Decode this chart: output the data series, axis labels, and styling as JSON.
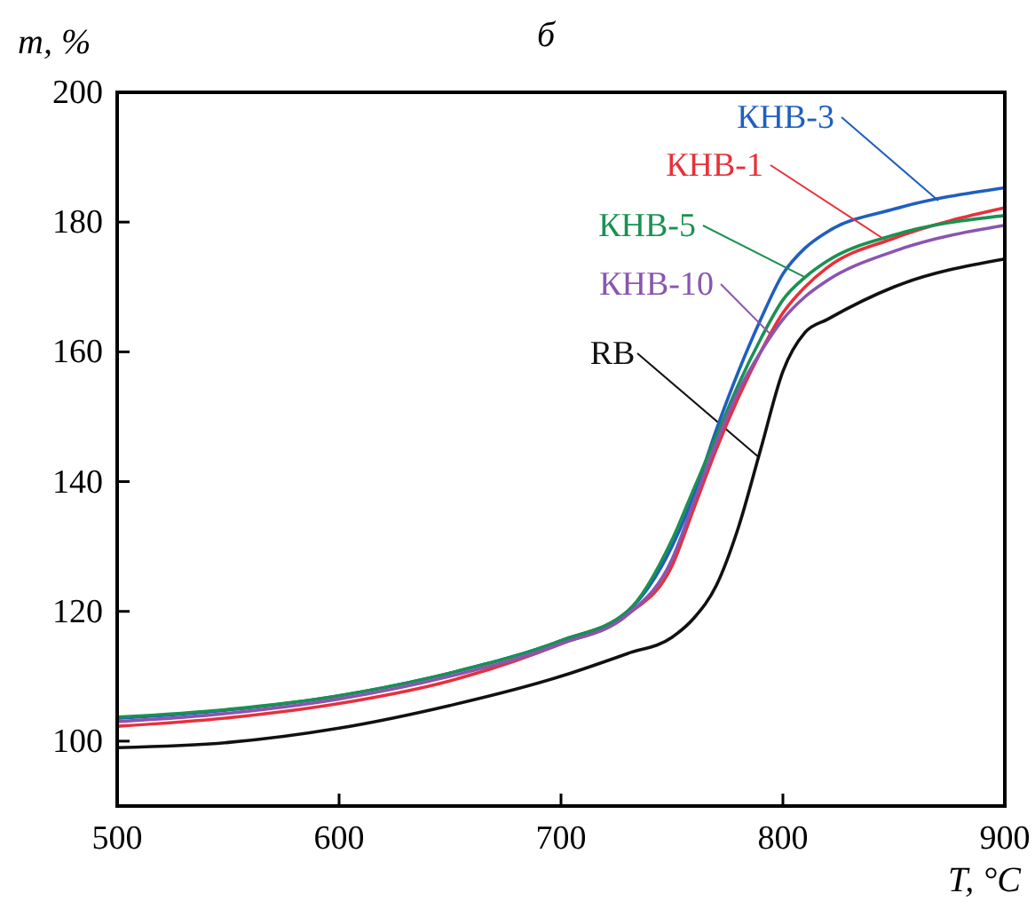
{
  "chart_data": {
    "type": "line",
    "title": "б",
    "xlabel": "T, °C",
    "ylabel": "m, %",
    "xlim": [
      500,
      900
    ],
    "ylim": [
      90,
      200
    ],
    "xticks": [
      500,
      600,
      700,
      800,
      900
    ],
    "yticks": [
      100,
      120,
      140,
      160,
      180,
      200
    ],
    "grid": false,
    "marker": "none",
    "line_style": "solid",
    "x": [
      500,
      550,
      600,
      650,
      700,
      730,
      750,
      760,
      770,
      780,
      790,
      800,
      810,
      820,
      850,
      900
    ],
    "series": [
      {
        "name": "RB",
        "color": "#111111",
        "values": [
          99,
          99.8,
          102,
          105.5,
          110,
          113.5,
          116,
          119,
          124,
          133,
          145,
          157,
          163,
          165,
          170,
          174.3
        ]
      },
      {
        "name": "КНВ-3",
        "color": "#1f5fbf",
        "values": [
          103.5,
          104.8,
          107,
          110.5,
          115.5,
          120,
          130,
          138,
          148,
          157,
          165,
          172,
          176,
          178.5,
          182,
          185.3
        ]
      },
      {
        "name": "КНВ-1",
        "color": "#e8303a",
        "values": [
          102.3,
          103.6,
          105.8,
          109.3,
          115,
          119.5,
          127,
          136,
          145,
          153,
          160,
          166,
          170,
          173,
          177.5,
          182.2
        ]
      },
      {
        "name": "КНВ-5",
        "color": "#1a9152",
        "values": [
          103.7,
          104.9,
          107,
          110.5,
          115.5,
          120,
          131,
          139,
          147,
          155,
          162,
          168,
          171.5,
          174,
          178,
          181
        ]
      },
      {
        "name": "КНВ-10",
        "color": "#8a55b0",
        "values": [
          103,
          104.3,
          106.5,
          110,
          115,
          119.5,
          128,
          137,
          146,
          154,
          160,
          165,
          168.5,
          171,
          175.5,
          179.5
        ]
      }
    ]
  }
}
